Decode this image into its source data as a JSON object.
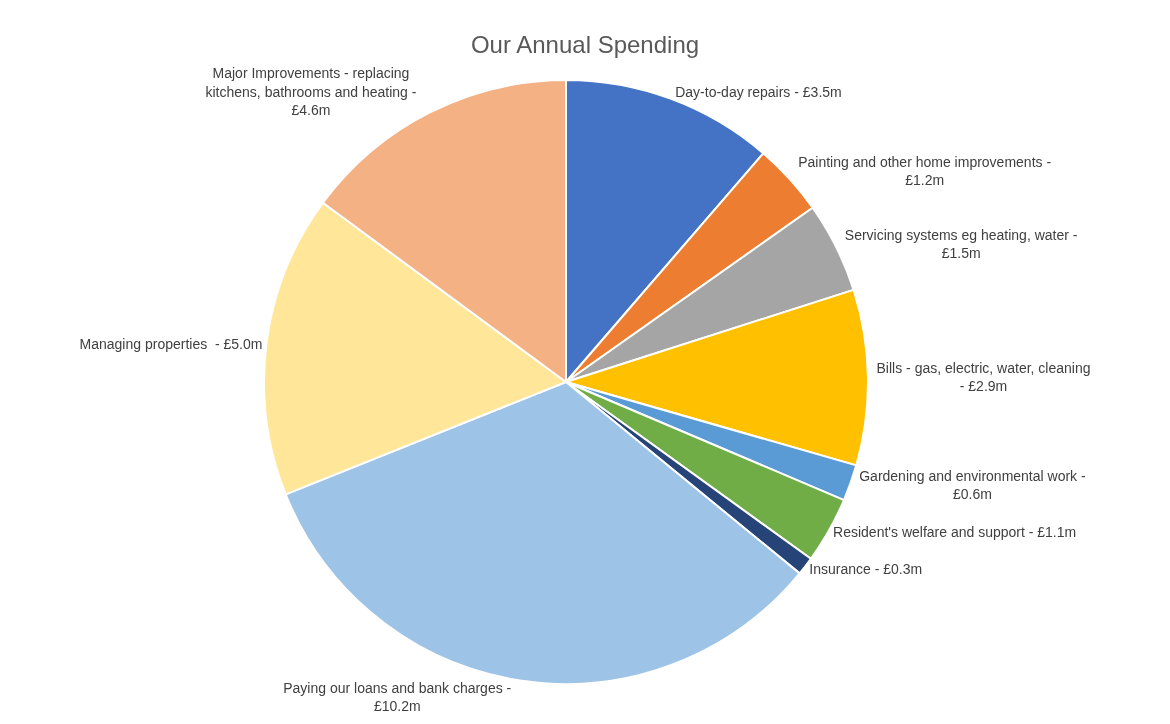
{
  "chart_data": {
    "type": "pie",
    "title": "Our Annual Spending",
    "categories": [
      "Day-to-day repairs -",
      "Painting and other home improvements -",
      "Servicing systems eg heating, water -",
      "Bills - gas, electric, water, cleaning -",
      "Gardening and environmental work -",
      "Resident's welfare and support -",
      "Insurance -",
      "Paying our loans and bank charges -",
      "Managing properties  -",
      "Major Improvements - replacing kitchens, bathrooms and heating -"
    ],
    "values": [
      3.5,
      1.2,
      1.5,
      2.9,
      0.6,
      1.1,
      0.3,
      10.2,
      5.0,
      4.6
    ],
    "value_labels": [
      "£3.5m",
      "£1.2m",
      "£1.5m",
      "£2.9m",
      "£0.6m",
      "£1.1m",
      "£0.3m",
      "£10.2m",
      "£5.0m",
      "£4.6m"
    ],
    "colors": [
      "#4472c4",
      "#ed7d31",
      "#a5a5a5",
      "#ffc000",
      "#5b9bd5",
      "#70ad47",
      "#264478",
      "#9dc3e6",
      "#ffe699",
      "#f4b183"
    ],
    "legend": false
  }
}
